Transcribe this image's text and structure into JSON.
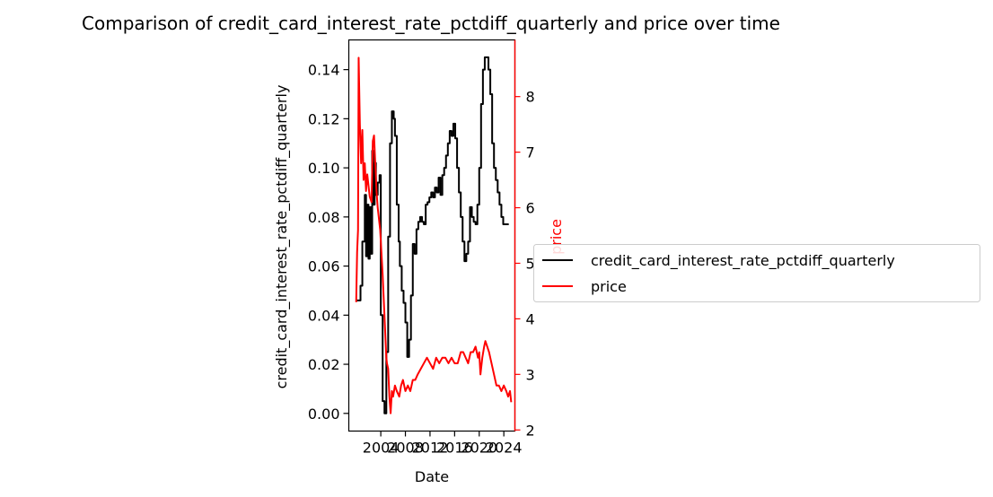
{
  "chart_data": {
    "type": "line",
    "title": "Comparison of credit_card_interest_rate_pctdiff_quarterly and price over time",
    "xlabel": "Date",
    "ylabel_left": "credit_card_interest_rate_pctdiff_quarterly",
    "ylabel_right": "price",
    "xlim": [
      1998.8,
      2025.8
    ],
    "ylim_left": [
      -0.0072,
      0.1521
    ],
    "ylim_right": [
      1.98,
      9.02
    ],
    "x_ticks": [
      "2004",
      "2008",
      "2012",
      "2016",
      "2020",
      "2024"
    ],
    "x_tick_values": [
      2004,
      2008,
      2012,
      2016,
      2020,
      2024
    ],
    "y_left_ticks": [
      "0.00",
      "0.02",
      "0.04",
      "0.06",
      "0.08",
      "0.10",
      "0.12",
      "0.14"
    ],
    "y_left_tick_values": [
      0,
      0.02,
      0.04,
      0.06,
      0.08,
      0.1,
      0.12,
      0.14
    ],
    "y_right_ticks": [
      "2",
      "3",
      "4",
      "5",
      "6",
      "7",
      "8"
    ],
    "y_right_tick_values": [
      2,
      3,
      4,
      5,
      6,
      7,
      8
    ],
    "grid": false,
    "legend_placement": "center-right outside",
    "series": [
      {
        "name": "credit_card_interest_rate_pctdiff_quarterly",
        "axis": "left",
        "color": "#000000",
        "step": true,
        "x": [
          2000.0,
          2000.4,
          2000.7,
          2001.0,
          2001.4,
          2001.6,
          2001.8,
          2002.0,
          2002.2,
          2002.4,
          2002.6,
          2002.8,
          2003.0,
          2003.2,
          2003.5,
          2003.8,
          2004.0,
          2004.3,
          2004.6,
          2004.9,
          2005.2,
          2005.5,
          2005.8,
          2006.1,
          2006.3,
          2006.6,
          2006.9,
          2007.1,
          2007.4,
          2007.7,
          2008.0,
          2008.3,
          2008.6,
          2008.9,
          2009.2,
          2009.5,
          2009.8,
          2010.1,
          2010.4,
          2010.7,
          2011.0,
          2011.3,
          2011.6,
          2011.9,
          2012.2,
          2012.5,
          2012.8,
          2013.1,
          2013.4,
          2013.7,
          2014.0,
          2014.3,
          2014.6,
          2014.9,
          2015.2,
          2015.5,
          2015.8,
          2016.1,
          2016.4,
          2016.7,
          2017.0,
          2017.3,
          2017.6,
          2017.9,
          2018.2,
          2018.5,
          2018.8,
          2019.1,
          2019.4,
          2019.7,
          2020.0,
          2020.3,
          2020.6,
          2020.9,
          2021.2,
          2021.5,
          2021.8,
          2022.1,
          2022.4,
          2022.7,
          2023.0,
          2023.3,
          2023.6,
          2023.9,
          2024.2,
          2024.5,
          2024.8
        ],
        "y": [
          0.046,
          0.046,
          0.052,
          0.07,
          0.089,
          0.064,
          0.085,
          0.063,
          0.084,
          0.065,
          0.107,
          0.085,
          0.102,
          0.089,
          0.094,
          0.097,
          0.04,
          0.005,
          0.0,
          0.025,
          0.072,
          0.11,
          0.123,
          0.12,
          0.113,
          0.085,
          0.07,
          0.06,
          0.05,
          0.045,
          0.037,
          0.023,
          0.03,
          0.048,
          0.069,
          0.065,
          0.075,
          0.078,
          0.08,
          0.078,
          0.077,
          0.085,
          0.086,
          0.088,
          0.09,
          0.088,
          0.092,
          0.09,
          0.096,
          0.089,
          0.097,
          0.1,
          0.105,
          0.11,
          0.115,
          0.113,
          0.118,
          0.112,
          0.1,
          0.09,
          0.08,
          0.07,
          0.062,
          0.065,
          0.07,
          0.084,
          0.08,
          0.078,
          0.077,
          0.085,
          0.1,
          0.126,
          0.14,
          0.145,
          0.145,
          0.14,
          0.13,
          0.11,
          0.1,
          0.095,
          0.09,
          0.085,
          0.08,
          0.077,
          0.077,
          0.077,
          0.077
        ]
      },
      {
        "name": "price",
        "axis": "right",
        "color": "#ff0000",
        "step": false,
        "x": [
          2000.0,
          2000.15,
          2000.3,
          2000.4,
          2000.6,
          2000.8,
          2001.0,
          2001.2,
          2001.4,
          2001.6,
          2001.8,
          2002.0,
          2002.2,
          2002.5,
          2002.7,
          2002.9,
          2003.1,
          2003.3,
          2003.5,
          2003.7,
          2003.9,
          2004.1,
          2004.3,
          2004.5,
          2004.7,
          2004.9,
          2005.0,
          2005.2,
          2005.4,
          2005.6,
          2005.8,
          2006.0,
          2006.3,
          2006.6,
          2007.0,
          2007.3,
          2007.6,
          2008.0,
          2008.4,
          2008.8,
          2009.2,
          2009.6,
          2010.0,
          2010.5,
          2011.0,
          2011.5,
          2012.0,
          2012.5,
          2013.0,
          2013.5,
          2014.0,
          2014.5,
          2015.0,
          2015.5,
          2016.0,
          2016.5,
          2017.0,
          2017.4,
          2017.8,
          2018.2,
          2018.6,
          2019.0,
          2019.4,
          2019.8,
          2020.0,
          2020.2,
          2020.5,
          2020.8,
          2021.0,
          2021.3,
          2021.6,
          2022.0,
          2022.4,
          2022.8,
          2023.2,
          2023.6,
          2024.0,
          2024.4,
          2024.7,
          2025.0,
          2025.2
        ],
        "y": [
          4.3,
          5.2,
          5.6,
          8.7,
          7.5,
          6.8,
          7.4,
          6.5,
          6.8,
          6.3,
          6.6,
          6.4,
          6.2,
          6.1,
          7.2,
          7.3,
          6.8,
          6.3,
          6.0,
          5.8,
          5.6,
          5.2,
          4.8,
          4.3,
          3.8,
          3.3,
          3.2,
          3.1,
          2.6,
          2.3,
          2.7,
          2.6,
          2.8,
          2.7,
          2.6,
          2.8,
          2.9,
          2.7,
          2.8,
          2.7,
          2.9,
          2.9,
          3.0,
          3.1,
          3.2,
          3.3,
          3.2,
          3.1,
          3.3,
          3.2,
          3.3,
          3.3,
          3.2,
          3.3,
          3.2,
          3.2,
          3.4,
          3.4,
          3.3,
          3.2,
          3.4,
          3.4,
          3.5,
          3.3,
          3.4,
          3.0,
          3.3,
          3.5,
          3.6,
          3.5,
          3.4,
          3.2,
          3.0,
          2.8,
          2.8,
          2.7,
          2.8,
          2.7,
          2.6,
          2.7,
          2.5
        ]
      }
    ]
  }
}
